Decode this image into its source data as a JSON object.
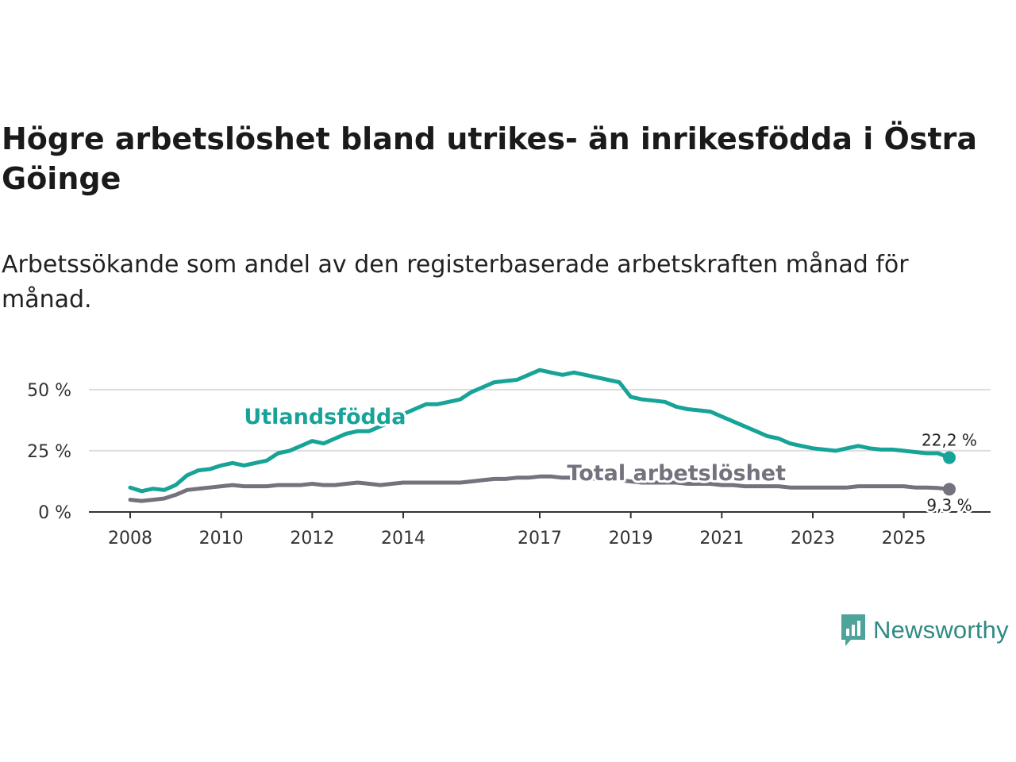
{
  "title": "Högre arbetslöshet bland utrikes- än inrikesfödda i Östra Göinge",
  "subtitle": "Arbetssökande som andel av den registerbaserade arbetskraften månad för månad.",
  "brand": {
    "name": "Newsworthy",
    "icon": "newsworthy-logo-icon",
    "color": "#4ea39a"
  },
  "chart_data": {
    "type": "line",
    "title": "Högre arbetslöshet bland utrikes- än inrikesfödda i Östra Göinge",
    "subtitle": "Arbetssökande som andel av den registerbaserade arbetskraften månad för månad.",
    "xlabel": "",
    "ylabel": "",
    "xlim": [
      2008.0,
      2026.3
    ],
    "ylim": [
      0,
      60
    ],
    "x_ticks": [
      2008,
      2010,
      2012,
      2014,
      2017,
      2019,
      2021,
      2023,
      2025
    ],
    "y_ticks": [
      {
        "value": 0,
        "label": "0 %"
      },
      {
        "value": 25,
        "label": "25 %"
      },
      {
        "value": 50,
        "label": "50 %"
      }
    ],
    "grid": true,
    "series": [
      {
        "name": "Utlandsfödda",
        "color": "#17a398",
        "end_label": "22,2 %",
        "label_at": [
          2010.5,
          36
        ],
        "points": [
          [
            2008.0,
            10
          ],
          [
            2008.25,
            8.5
          ],
          [
            2008.5,
            9.5
          ],
          [
            2008.75,
            9
          ],
          [
            2009.0,
            11
          ],
          [
            2009.25,
            15
          ],
          [
            2009.5,
            17
          ],
          [
            2009.75,
            17.5
          ],
          [
            2010.0,
            19
          ],
          [
            2010.25,
            20
          ],
          [
            2010.5,
            19
          ],
          [
            2010.75,
            20
          ],
          [
            2011.0,
            21
          ],
          [
            2011.25,
            24
          ],
          [
            2011.5,
            25
          ],
          [
            2011.75,
            27
          ],
          [
            2012.0,
            29
          ],
          [
            2012.25,
            28
          ],
          [
            2012.5,
            30
          ],
          [
            2012.75,
            32
          ],
          [
            2013.0,
            33
          ],
          [
            2013.25,
            33
          ],
          [
            2013.5,
            35
          ],
          [
            2013.75,
            37
          ],
          [
            2014.0,
            40
          ],
          [
            2014.25,
            42
          ],
          [
            2014.5,
            44
          ],
          [
            2014.75,
            44
          ],
          [
            2015.0,
            45
          ],
          [
            2015.25,
            46
          ],
          [
            2015.5,
            49
          ],
          [
            2015.75,
            51
          ],
          [
            2016.0,
            53
          ],
          [
            2016.25,
            53.5
          ],
          [
            2016.5,
            54
          ],
          [
            2016.75,
            56
          ],
          [
            2017.0,
            58
          ],
          [
            2017.25,
            57
          ],
          [
            2017.5,
            56
          ],
          [
            2017.75,
            57
          ],
          [
            2018.0,
            56
          ],
          [
            2018.25,
            55
          ],
          [
            2018.5,
            54
          ],
          [
            2018.75,
            53
          ],
          [
            2019.0,
            47
          ],
          [
            2019.25,
            46
          ],
          [
            2019.5,
            45.5
          ],
          [
            2019.75,
            45
          ],
          [
            2020.0,
            43
          ],
          [
            2020.25,
            42
          ],
          [
            2020.5,
            41.5
          ],
          [
            2020.75,
            41
          ],
          [
            2021.0,
            39
          ],
          [
            2021.25,
            37
          ],
          [
            2021.5,
            35
          ],
          [
            2021.75,
            33
          ],
          [
            2022.0,
            31
          ],
          [
            2022.25,
            30
          ],
          [
            2022.5,
            28
          ],
          [
            2022.75,
            27
          ],
          [
            2023.0,
            26
          ],
          [
            2023.25,
            25.5
          ],
          [
            2023.5,
            25
          ],
          [
            2023.75,
            26
          ],
          [
            2024.0,
            27
          ],
          [
            2024.25,
            26
          ],
          [
            2024.5,
            25.5
          ],
          [
            2024.75,
            25.5
          ],
          [
            2025.0,
            25
          ],
          [
            2025.25,
            24.5
          ],
          [
            2025.5,
            24
          ],
          [
            2025.75,
            24
          ],
          [
            2026.0,
            22.2
          ]
        ]
      },
      {
        "name": "Total arbetslöshet",
        "color": "#74727c",
        "end_label": "9,3 %",
        "label_at": [
          2017.6,
          13
        ],
        "points": [
          [
            2008.0,
            5
          ],
          [
            2008.25,
            4.5
          ],
          [
            2008.5,
            5
          ],
          [
            2008.75,
            5.5
          ],
          [
            2009.0,
            7
          ],
          [
            2009.25,
            9
          ],
          [
            2009.5,
            9.5
          ],
          [
            2009.75,
            10
          ],
          [
            2010.0,
            10.5
          ],
          [
            2010.25,
            11
          ],
          [
            2010.5,
            10.5
          ],
          [
            2010.75,
            10.5
          ],
          [
            2011.0,
            10.5
          ],
          [
            2011.25,
            11
          ],
          [
            2011.5,
            11
          ],
          [
            2011.75,
            11
          ],
          [
            2012.0,
            11.5
          ],
          [
            2012.25,
            11
          ],
          [
            2012.5,
            11
          ],
          [
            2012.75,
            11.5
          ],
          [
            2013.0,
            12
          ],
          [
            2013.25,
            11.5
          ],
          [
            2013.5,
            11
          ],
          [
            2013.75,
            11.5
          ],
          [
            2014.0,
            12
          ],
          [
            2014.25,
            12
          ],
          [
            2014.5,
            12
          ],
          [
            2014.75,
            12
          ],
          [
            2015.0,
            12
          ],
          [
            2015.25,
            12
          ],
          [
            2015.5,
            12.5
          ],
          [
            2015.75,
            13
          ],
          [
            2016.0,
            13.5
          ],
          [
            2016.25,
            13.5
          ],
          [
            2016.5,
            14
          ],
          [
            2016.75,
            14
          ],
          [
            2017.0,
            14.5
          ],
          [
            2017.25,
            14.5
          ],
          [
            2017.5,
            14
          ],
          [
            2017.75,
            14
          ],
          [
            2018.0,
            14
          ],
          [
            2018.25,
            13.5
          ],
          [
            2018.5,
            13
          ],
          [
            2018.75,
            13
          ],
          [
            2019.0,
            12.5
          ],
          [
            2019.25,
            12
          ],
          [
            2019.5,
            12
          ],
          [
            2019.75,
            12
          ],
          [
            2020.0,
            12
          ],
          [
            2020.25,
            11.5
          ],
          [
            2020.5,
            11.5
          ],
          [
            2020.75,
            11.5
          ],
          [
            2021.0,
            11
          ],
          [
            2021.25,
            11
          ],
          [
            2021.5,
            10.5
          ],
          [
            2021.75,
            10.5
          ],
          [
            2022.0,
            10.5
          ],
          [
            2022.25,
            10.5
          ],
          [
            2022.5,
            10
          ],
          [
            2022.75,
            10
          ],
          [
            2023.0,
            10
          ],
          [
            2023.25,
            10
          ],
          [
            2023.5,
            10
          ],
          [
            2023.75,
            10
          ],
          [
            2024.0,
            10.5
          ],
          [
            2024.25,
            10.5
          ],
          [
            2024.5,
            10.5
          ],
          [
            2024.75,
            10.5
          ],
          [
            2025.0,
            10.5
          ],
          [
            2025.25,
            10
          ],
          [
            2025.5,
            10
          ],
          [
            2025.75,
            9.8
          ],
          [
            2026.0,
            9.3
          ]
        ]
      }
    ]
  }
}
